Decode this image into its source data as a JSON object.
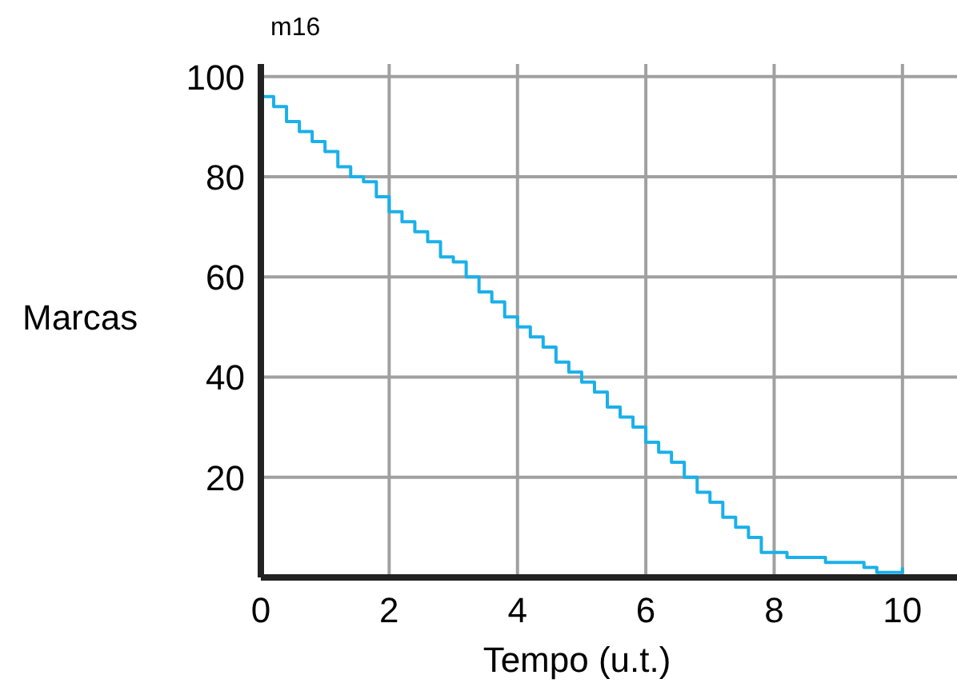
{
  "chart_data": {
    "type": "step",
    "xlabel": "Tempo (u.t.)",
    "ylabel": "Marcas",
    "annotations": [
      "m16"
    ],
    "x": [
      0,
      0.2,
      0.4,
      0.6,
      0.8,
      1.0,
      1.2,
      1.4,
      1.6,
      1.8,
      2.0,
      2.2,
      2.4,
      2.6,
      2.8,
      3.0,
      3.2,
      3.4,
      3.6,
      3.8,
      4.0,
      4.2,
      4.4,
      4.6,
      4.8,
      5.0,
      5.2,
      5.4,
      5.6,
      5.8,
      6.0,
      6.2,
      6.4,
      6.6,
      6.8,
      7.0,
      7.2,
      7.4,
      7.6,
      7.8,
      8.0,
      8.2,
      8.4,
      8.6,
      8.8,
      9.0,
      9.2,
      9.4,
      9.6,
      9.8,
      10
    ],
    "series": [
      {
        "color": "#1ab0ea",
        "values": [
          96,
          94,
          91,
          89,
          87,
          85,
          82,
          80,
          79,
          76,
          73,
          71,
          69,
          67,
          64,
          63,
          60,
          57,
          55,
          52,
          50,
          48,
          46,
          43,
          41,
          39,
          37,
          34,
          32,
          30,
          27,
          25,
          23,
          20,
          17,
          15,
          12,
          10,
          8,
          5,
          5,
          4,
          4,
          4,
          3,
          3,
          3,
          2,
          1,
          1,
          2
        ]
      }
    ],
    "xlim": [
      0,
      10.85
    ],
    "ylim": [
      0,
      102.5
    ],
    "xticks": [
      0,
      2,
      4,
      6,
      8,
      10
    ],
    "yticks": [
      {
        "value": 0,
        "label": null
      },
      20,
      40,
      60,
      80,
      100
    ],
    "grid": true
  }
}
